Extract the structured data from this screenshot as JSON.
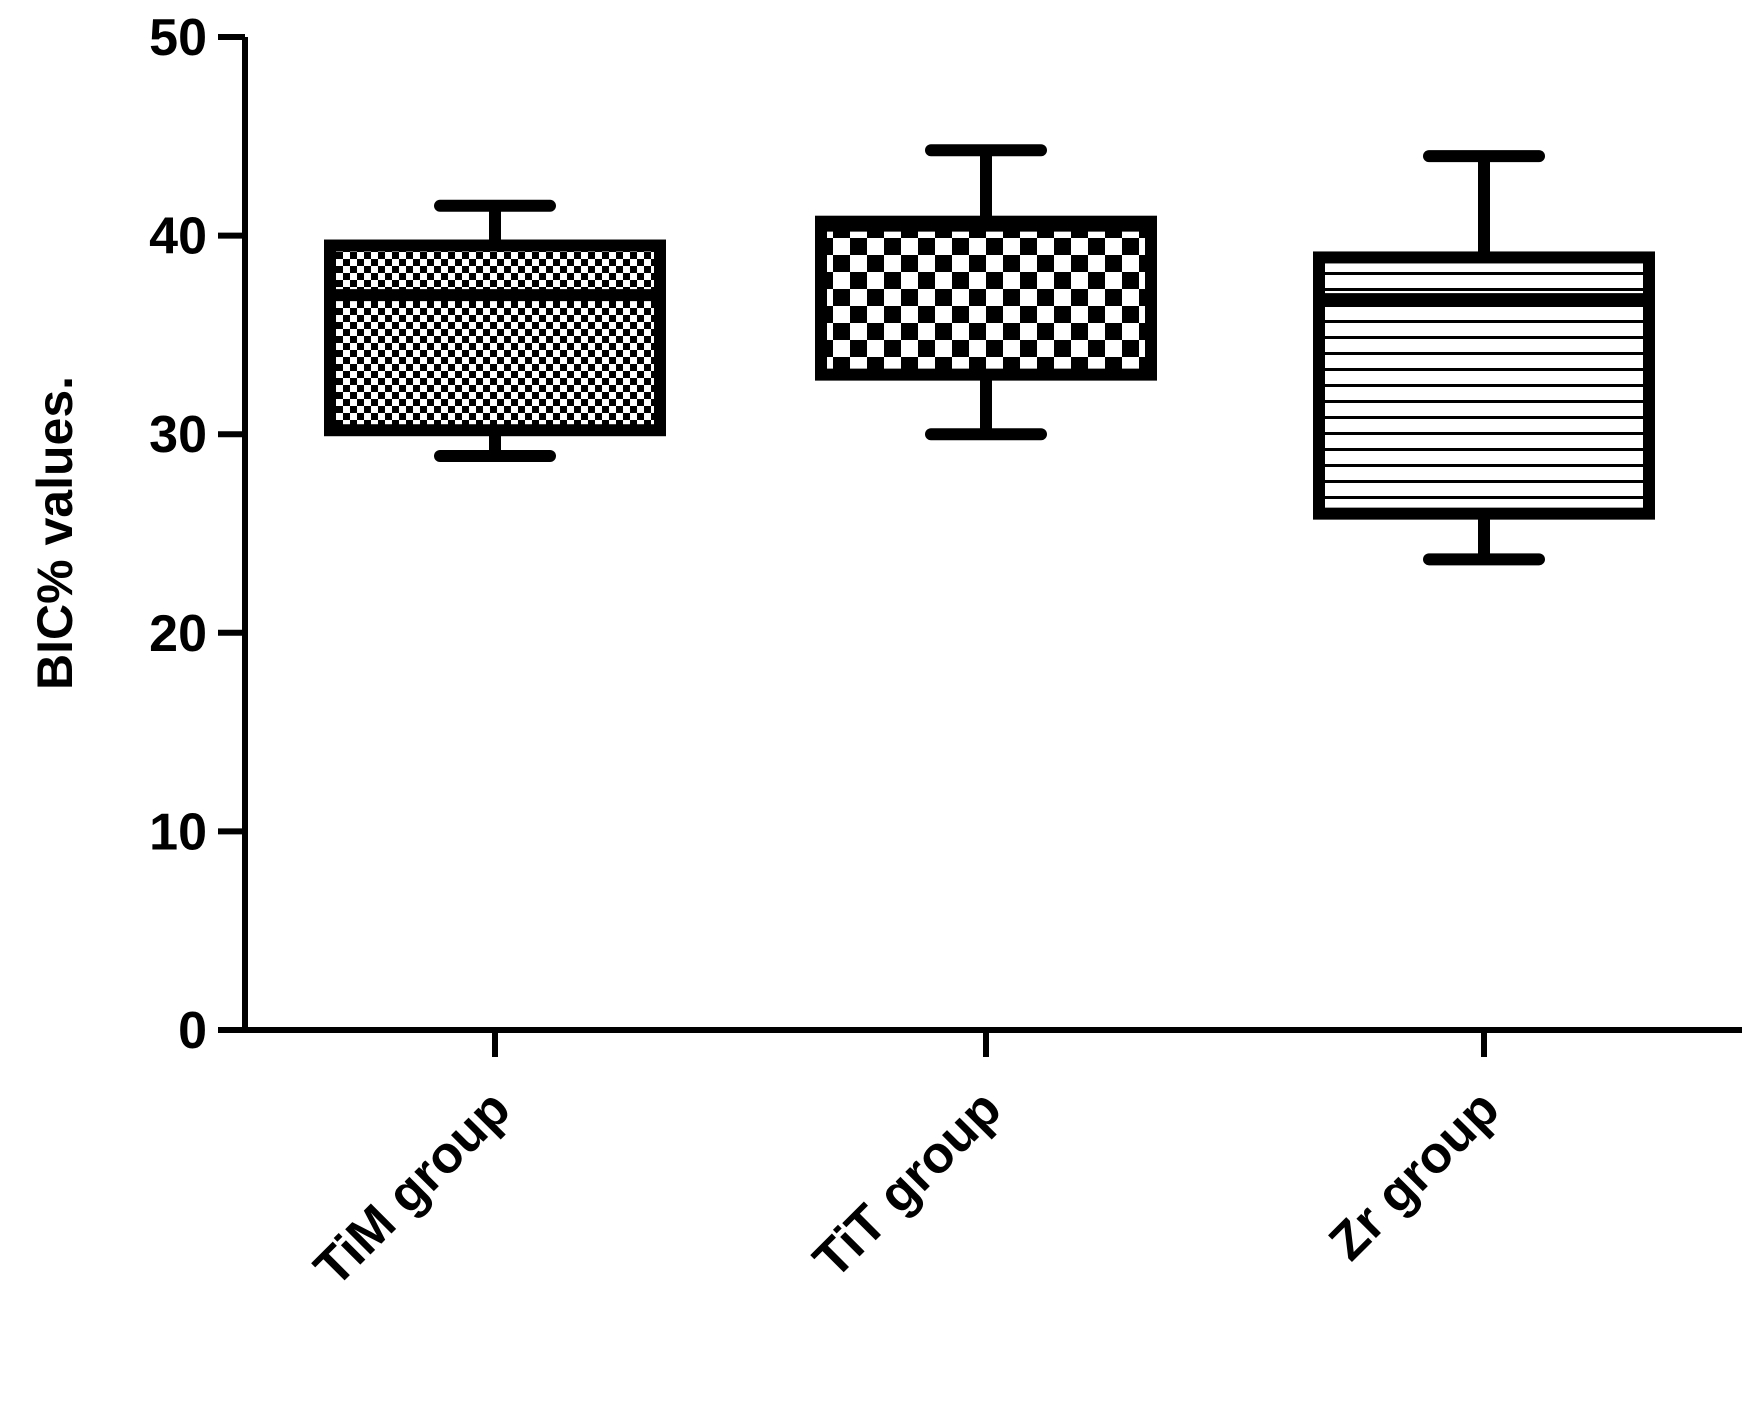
{
  "chart_data": {
    "type": "box",
    "title": "",
    "xlabel": "",
    "ylabel": "BIC% values.",
    "ylim": [
      0,
      50
    ],
    "yticks": [
      "0",
      "10",
      "20",
      "30",
      "40",
      "50"
    ],
    "grid": false,
    "legend": "none",
    "categories": [
      "TiM group",
      "TiT group",
      "Zr group"
    ],
    "boxes": [
      {
        "category": "TiM group",
        "min": 28.9,
        "q1": 30.2,
        "median": 37.0,
        "q3": 39.5,
        "max": 41.5,
        "pattern": "fine-checker"
      },
      {
        "category": "TiT group",
        "min": 30.0,
        "q1": 33.0,
        "median": 40.5,
        "q3": 40.7,
        "max": 44.3,
        "pattern": "coarse-checker"
      },
      {
        "category": "Zr group",
        "min": 23.7,
        "q1": 26.0,
        "median": 36.8,
        "q3": 38.9,
        "max": 44.0,
        "pattern": "horizontal-stripes"
      }
    ]
  }
}
